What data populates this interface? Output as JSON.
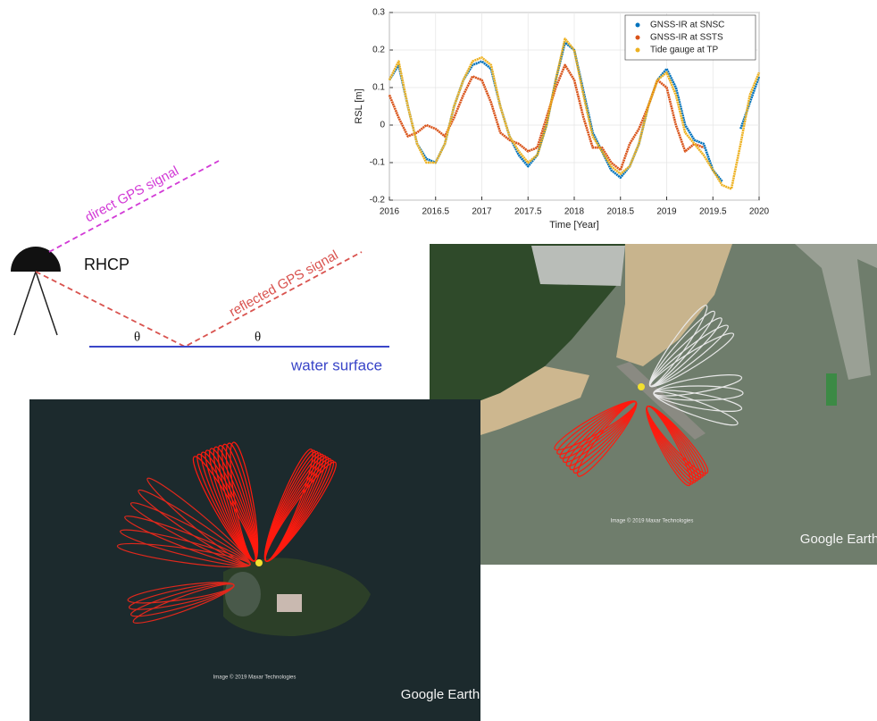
{
  "chart_data": {
    "type": "line",
    "x": [
      2016,
      2016.1,
      2016.2,
      2016.3,
      2016.4,
      2016.5,
      2016.6,
      2016.7,
      2016.8,
      2016.9,
      2017,
      2017.1,
      2017.2,
      2017.3,
      2017.4,
      2017.5,
      2017.6,
      2017.7,
      2017.8,
      2017.9,
      2018,
      2018.1,
      2018.2,
      2018.3,
      2018.4,
      2018.5,
      2018.6,
      2018.7,
      2018.8,
      2018.9,
      2019,
      2019.1,
      2019.2,
      2019.3,
      2019.4,
      2019.5,
      2019.6,
      2019.7,
      2019.8,
      2019.9,
      2020
    ],
    "series": [
      {
        "name": "GNSS-IR at SNSC",
        "color": "#0072bd",
        "values": [
          0.12,
          0.16,
          0.05,
          -0.05,
          -0.09,
          -0.1,
          -0.05,
          0.05,
          0.12,
          0.16,
          0.17,
          0.15,
          0.05,
          -0.03,
          -0.08,
          -0.11,
          -0.08,
          0.0,
          0.12,
          0.22,
          0.2,
          0.09,
          -0.02,
          -0.07,
          -0.12,
          -0.14,
          -0.11,
          -0.05,
          0.05,
          0.12,
          0.15,
          0.1,
          0.0,
          -0.04,
          -0.05,
          -0.12,
          -0.15,
          null,
          -0.01,
          0.06,
          0.13
        ]
      },
      {
        "name": "GNSS-IR at SSTS",
        "color": "#d95319",
        "values": [
          0.08,
          0.02,
          -0.03,
          -0.02,
          0.0,
          -0.01,
          -0.03,
          0.02,
          0.08,
          0.13,
          0.12,
          0.06,
          -0.02,
          -0.04,
          -0.05,
          -0.07,
          -0.06,
          0.02,
          0.1,
          0.16,
          0.12,
          0.02,
          -0.06,
          -0.06,
          -0.1,
          -0.12,
          -0.05,
          -0.01,
          0.05,
          0.12,
          0.1,
          0.0,
          -0.07,
          -0.05,
          -0.06,
          null,
          -0.07,
          null,
          null,
          null,
          null
        ]
      },
      {
        "name": "Tide gauge at TP",
        "color": "#edb120",
        "values": [
          0.12,
          0.17,
          0.05,
          -0.05,
          -0.1,
          -0.1,
          -0.05,
          0.05,
          0.12,
          0.17,
          0.18,
          0.16,
          0.05,
          -0.03,
          -0.07,
          -0.1,
          -0.08,
          0.0,
          0.12,
          0.23,
          0.2,
          0.08,
          -0.03,
          -0.07,
          -0.11,
          -0.13,
          -0.11,
          -0.05,
          0.05,
          0.12,
          0.14,
          0.08,
          -0.02,
          -0.05,
          -0.08,
          -0.12,
          -0.16,
          -0.17,
          -0.05,
          0.08,
          0.14
        ]
      }
    ],
    "xlabel": "Time [Year]",
    "ylabel": "RSL [m]",
    "xlim": [
      2016,
      2020
    ],
    "ylim": [
      -0.2,
      0.3
    ],
    "xticks": [
      2016,
      2016.5,
      2017,
      2017.5,
      2018,
      2018.5,
      2019,
      2019.5,
      2020
    ],
    "yticks": [
      -0.2,
      -0.1,
      0,
      0.1,
      0.2,
      0.3
    ],
    "grid": true,
    "legend": "upper right"
  },
  "diagram": {
    "direct_label": "direct GPS signal",
    "antenna_label": "RHCP",
    "reflected_label": "reflected GPS signal",
    "angle_labels": [
      "θ",
      "θ"
    ],
    "surface_label": "water surface"
  },
  "images": [
    {
      "credit": "Image © 2019 Maxar Technologies",
      "watermark": "Google Earth"
    },
    {
      "credit": "Image © 2019 Maxar Technologies",
      "watermark": "Google Earth"
    }
  ]
}
